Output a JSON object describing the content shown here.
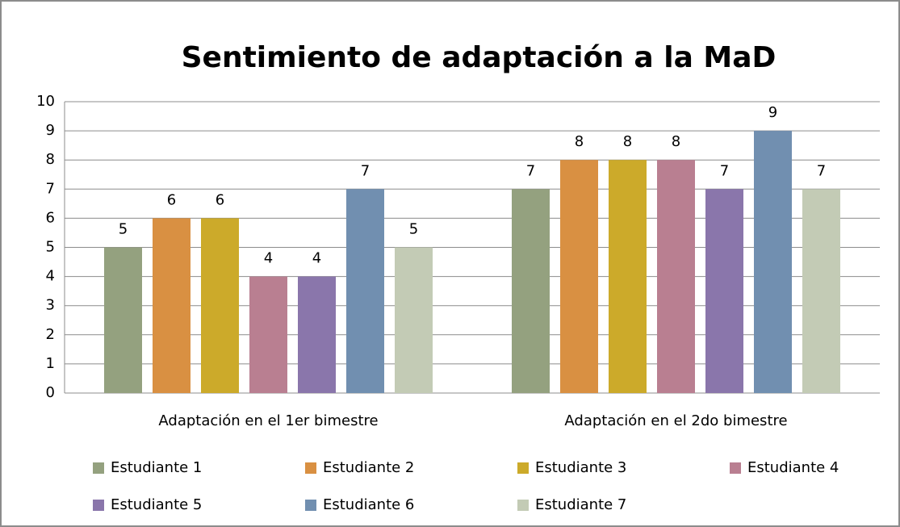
{
  "chart_data": {
    "type": "bar",
    "title": "Sentimiento de adaptación a la MaD",
    "categories": [
      "Adaptación en el 1er bimestre",
      "Adaptación en el 2do bimestre"
    ],
    "series": [
      {
        "name": "Estudiante 1",
        "color": "#94a17f",
        "values": [
          5,
          7
        ]
      },
      {
        "name": "Estudiante 2",
        "color": "#d99042",
        "values": [
          6,
          8
        ]
      },
      {
        "name": "Estudiante 3",
        "color": "#ccaa2a",
        "values": [
          6,
          8
        ]
      },
      {
        "name": "Estudiante 4",
        "color": "#b97f91",
        "values": [
          4,
          8
        ]
      },
      {
        "name": "Estudiante 5",
        "color": "#8a76ab",
        "values": [
          4,
          7
        ]
      },
      {
        "name": "Estudiante 6",
        "color": "#718fb0",
        "values": [
          7,
          9
        ]
      },
      {
        "name": "Estudiante 7",
        "color": "#c3cbb5",
        "values": [
          5,
          7
        ]
      }
    ],
    "ylim": [
      0,
      10
    ],
    "yticks": [
      0,
      1,
      2,
      3,
      4,
      5,
      6,
      7,
      8,
      9,
      10
    ],
    "grid": true,
    "legend": "bottom"
  }
}
